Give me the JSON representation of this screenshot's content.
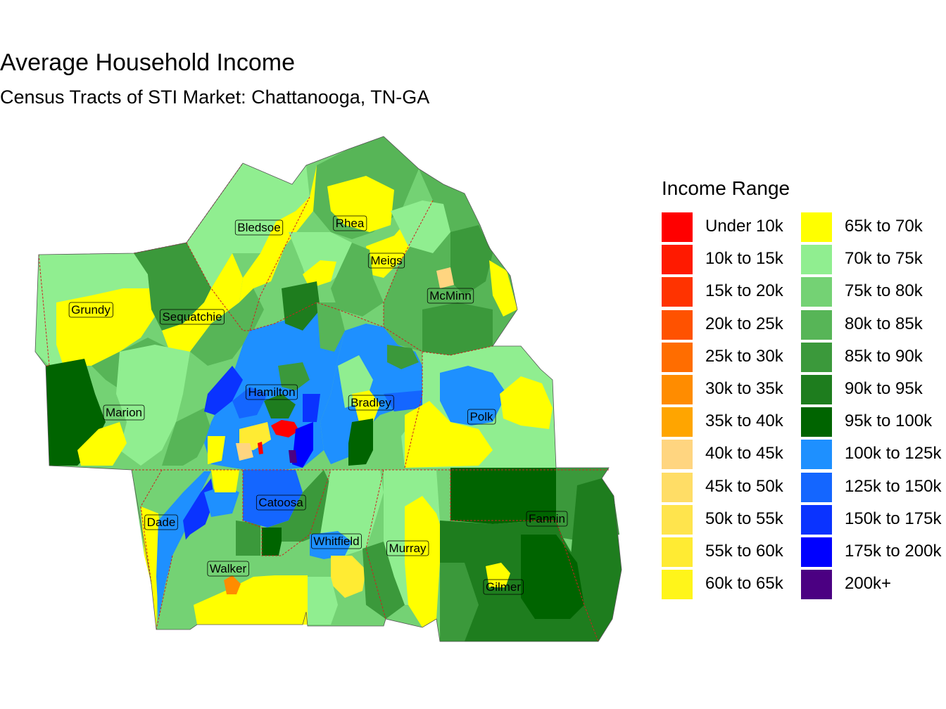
{
  "title": "Average Household Income",
  "subtitle": "Census Tracts of STI Market: Chattanooga, TN-GA",
  "legend": {
    "title": "Income Range",
    "items": [
      {
        "label": "Under 10k",
        "color": "#ff0000"
      },
      {
        "label": "10k to 15k",
        "color": "#ff1a00"
      },
      {
        "label": "15k to 20k",
        "color": "#ff3300"
      },
      {
        "label": "20k to 25k",
        "color": "#ff5200"
      },
      {
        "label": "25k to 30k",
        "color": "#ff6d00"
      },
      {
        "label": "30k to 35k",
        "color": "#ff8c00"
      },
      {
        "label": "35k to 40k",
        "color": "#ffa500"
      },
      {
        "label": "40k to 45k",
        "color": "#ffd580"
      },
      {
        "label": "45k to 50k",
        "color": "#ffdd66"
      },
      {
        "label": "50k to 55k",
        "color": "#ffe44d"
      },
      {
        "label": "55k to 60k",
        "color": "#ffeb33"
      },
      {
        "label": "60k to 65k",
        "color": "#fff51a"
      },
      {
        "label": "65k to 70k",
        "color": "#ffff00"
      },
      {
        "label": "70k to 75k",
        "color": "#90ee90"
      },
      {
        "label": "75k to 80k",
        "color": "#74d274"
      },
      {
        "label": "80k to 85k",
        "color": "#57b557"
      },
      {
        "label": "85k to 90k",
        "color": "#3b993b"
      },
      {
        "label": "90k to 95k",
        "color": "#1e7d1e"
      },
      {
        "label": "95k to 100k",
        "color": "#006400"
      },
      {
        "label": "100k to 125k",
        "color": "#1e90ff"
      },
      {
        "label": "125k to 150k",
        "color": "#1466ff"
      },
      {
        "label": "150k to 175k",
        "color": "#0a33ff"
      },
      {
        "label": "175k to 200k",
        "color": "#0000ff"
      },
      {
        "label": "200k+",
        "color": "#4b0082"
      }
    ]
  },
  "counties": [
    "Bledsoe",
    "Rhea",
    "Meigs",
    "McMinn",
    "Grundy",
    "Sequatchie",
    "Hamilton",
    "Bradley",
    "Polk",
    "Marion",
    "Catoosa",
    "Dade",
    "Whitfield",
    "Murray",
    "Fannin",
    "Walker",
    "Gilmer"
  ],
  "colors": {
    "county_border": "#cc2222",
    "label_border": "#000000"
  }
}
